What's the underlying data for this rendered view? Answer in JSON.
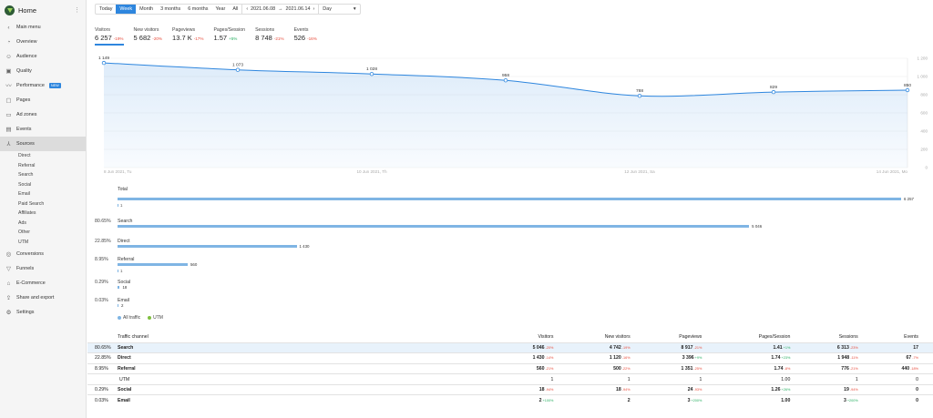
{
  "sidebar": {
    "title": "Home",
    "dots": "⋮",
    "back": "Main menu",
    "items": [
      {
        "label": "Overview",
        "icon": "overview-icon",
        "glyph": "◔"
      },
      {
        "label": "Audience",
        "icon": "audience-icon",
        "glyph": "☺"
      },
      {
        "label": "Quality",
        "icon": "quality-icon",
        "glyph": "▣"
      },
      {
        "label": "Performance",
        "icon": "performance-icon",
        "glyph": "〰",
        "badge": "NEW"
      },
      {
        "label": "Pages",
        "icon": "pages-icon",
        "glyph": "▢"
      },
      {
        "label": "Ad zones",
        "icon": "ad-zones-icon",
        "glyph": "▭"
      },
      {
        "label": "Events",
        "icon": "events-icon",
        "glyph": "▤"
      },
      {
        "label": "Sources",
        "icon": "sources-icon",
        "glyph": "⅄",
        "active": true
      }
    ],
    "sub_items": [
      "Direct",
      "Referral",
      "Search",
      "Social",
      "Email",
      "Paid Search",
      "Affiliates",
      "Ads",
      "Other",
      "UTM"
    ],
    "bottom_items": [
      {
        "label": "Conversions",
        "icon": "conversions-icon",
        "glyph": "◎"
      },
      {
        "label": "Funnels",
        "icon": "funnels-icon",
        "glyph": "▽"
      },
      {
        "label": "E-Commerce",
        "icon": "ecommerce-icon",
        "glyph": "⌂"
      },
      {
        "label": "Share and export",
        "icon": "share-icon",
        "glyph": "⇪"
      },
      {
        "label": "Settings",
        "icon": "settings-icon",
        "glyph": "⚙"
      }
    ]
  },
  "toolbar": {
    "periods": [
      "Today",
      "Week",
      "Month",
      "3 months",
      "6 months",
      "Year",
      "All"
    ],
    "selected": "Week",
    "prev": "‹",
    "date_from": "2021.06.08",
    "date_sep": "→",
    "date_to": "2021.06.14",
    "next": "›",
    "granularity": "Day",
    "caret": "▾"
  },
  "metrics": [
    {
      "label": "Visitors",
      "value": "6 257",
      "change": "-19%",
      "up": false
    },
    {
      "label": "New visitors",
      "value": "5 682",
      "change": "-20%",
      "up": false
    },
    {
      "label": "Pageviews",
      "value": "13.7 K",
      "change": "-17%",
      "up": false
    },
    {
      "label": "Pages/Session",
      "value": "1.57",
      "change": "+5%",
      "up": true
    },
    {
      "label": "Sessions",
      "value": "8 748",
      "change": "-21%",
      "up": false
    },
    {
      "label": "Events",
      "value": "526",
      "change": "-16%",
      "up": false
    }
  ],
  "chart_data": {
    "type": "area",
    "x": [
      "2021-06-08",
      "2021-06-09",
      "2021-06-10",
      "2021-06-11",
      "2021-06-12",
      "2021-06-13",
      "2021-06-14"
    ],
    "x_tick_labels": [
      "8 Jun 2021, Tu",
      "10 Jun 2021, Th",
      "12 Jun 2021, Sa",
      "14 Jun 2021, Mo"
    ],
    "series": [
      {
        "values": [
          1149,
          1073,
          1028,
          958,
          788,
          829,
          850
        ]
      }
    ],
    "data_labels": [
      "1 149",
      "1 073",
      "1 028",
      "958",
      "788",
      "829",
      "850"
    ],
    "y_tick_labels": [
      "0",
      "200",
      "400",
      "600",
      "800",
      "1 000",
      "1 200"
    ],
    "ylim": [
      0,
      1200
    ],
    "grid": true,
    "color": "#2e86de",
    "download_icon": "cloud-download-icon"
  },
  "breakdown": {
    "total": {
      "label": "Total",
      "value": "6 257",
      "fraction": 1.0,
      "utm": "1"
    },
    "rows": [
      {
        "pct": "80.65%",
        "name": "Search",
        "value": "5 046",
        "fraction": 0.806
      },
      {
        "pct": "22.85%",
        "name": "Direct",
        "value": "1 430",
        "fraction": 0.2285
      },
      {
        "pct": "8.95%",
        "name": "Referral",
        "value": "560",
        "fraction": 0.0895,
        "utm": "1"
      },
      {
        "pct": "0.29%",
        "name": "Social",
        "value": "18",
        "fraction": 0.0029
      },
      {
        "pct": "0.03%",
        "name": "Email",
        "value": "2",
        "fraction": 0.0003
      }
    ],
    "legend": [
      {
        "label": "All traffic",
        "color": "#7fb5e4"
      },
      {
        "label": "UTM",
        "color": "#7fbf3f"
      }
    ]
  },
  "table": {
    "headers": [
      "Traffic channel",
      "Visitors",
      "New visitors",
      "Pageviews",
      "Pages/Session",
      "Sessions",
      "Events"
    ],
    "rows": [
      {
        "pct": "80.65%",
        "name": "Search",
        "bold": true,
        "hl": true,
        "cells": [
          [
            "5 046",
            "-20%",
            false
          ],
          [
            "4 742",
            "-19%",
            false
          ],
          [
            "8 917",
            "-21%",
            false
          ],
          [
            "1.41",
            "+1%",
            true
          ],
          [
            "6 313",
            "-23%",
            false
          ],
          [
            "17",
            "",
            false
          ]
        ]
      },
      {
        "pct": "22.85%",
        "name": "Direct",
        "bold": true,
        "cells": [
          [
            "1 430",
            "-14%",
            false
          ],
          [
            "1 120",
            "-16%",
            false
          ],
          [
            "3 396",
            "+9%",
            true
          ],
          [
            "1.74",
            "+23%",
            true
          ],
          [
            "1 948",
            "-11%",
            false
          ],
          [
            "67",
            "-7%",
            false
          ]
        ]
      },
      {
        "pct": "8.95%",
        "name": "Referral",
        "bold": true,
        "cells": [
          [
            "560",
            "-21%",
            false
          ],
          [
            "500",
            "-22%",
            false
          ],
          [
            "1 351",
            "-25%",
            false
          ],
          [
            "1.74",
            "-8%",
            false
          ],
          [
            "776",
            "-21%",
            false
          ],
          [
            "440",
            "-18%",
            false
          ]
        ]
      },
      {
        "pct": "",
        "name": "UTM",
        "bold": false,
        "cells": [
          [
            "1",
            "",
            false
          ],
          [
            "1",
            "",
            false
          ],
          [
            "1",
            "",
            false
          ],
          [
            "1.00",
            "",
            false
          ],
          [
            "1",
            "",
            false
          ],
          [
            "0",
            "",
            false
          ]
        ]
      },
      {
        "pct": "0.29%",
        "name": "Social",
        "bold": true,
        "cells": [
          [
            "18",
            "-94%",
            false
          ],
          [
            "18",
            "-94%",
            false
          ],
          [
            "24",
            "-93%",
            false
          ],
          [
            "1.26",
            "+26%",
            true
          ],
          [
            "19",
            "-94%",
            false
          ],
          [
            "0",
            "",
            false
          ]
        ]
      },
      {
        "pct": "0.03%",
        "name": "Email",
        "bold": true,
        "cells": [
          [
            "2",
            "+100%",
            true
          ],
          [
            "2",
            "",
            false
          ],
          [
            "3",
            "+200%",
            true
          ],
          [
            "1.00",
            "",
            false
          ],
          [
            "3",
            "+200%",
            true
          ],
          [
            "0",
            "",
            false
          ]
        ]
      }
    ]
  }
}
